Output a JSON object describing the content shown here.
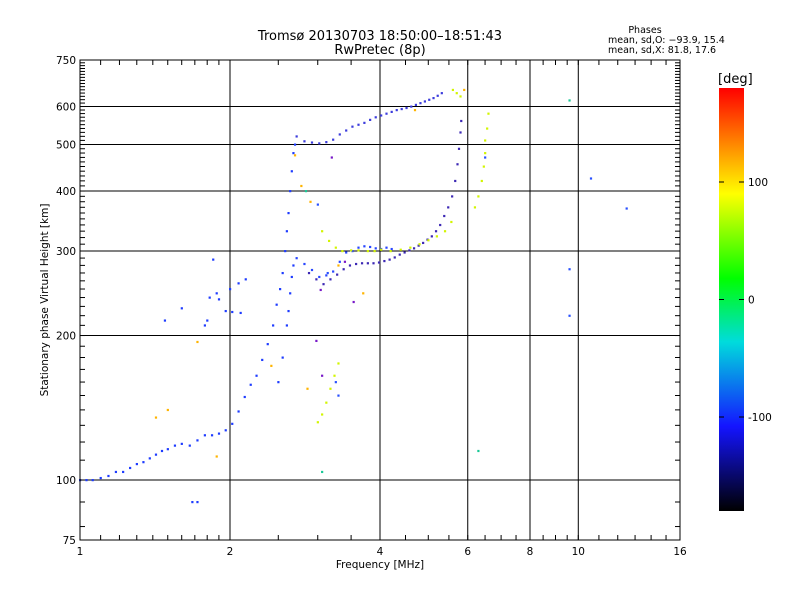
{
  "chart_data": {
    "type": "scatter",
    "title": "Tromsø 20130703 18:50:00–18:51:43",
    "subtitle": "RwPretec (8p)",
    "xlabel": "Frequency [MHz]",
    "ylabel": "Stationary phase Virtual Height [km]",
    "x_scale": "log",
    "y_scale": "log",
    "xlim": [
      1,
      16
    ],
    "ylim": [
      75,
      750
    ],
    "x_ticks": [
      1,
      2,
      4,
      6,
      8,
      10,
      16
    ],
    "x_tick_labels": [
      "1",
      "2",
      "4",
      "6",
      "8",
      "10",
      "16"
    ],
    "y_ticks": [
      75,
      100,
      200,
      300,
      400,
      500,
      600,
      750
    ],
    "y_tick_labels": [
      "75",
      "100",
      "200",
      "300",
      "400",
      "500",
      "600",
      "750"
    ],
    "grid": true,
    "stats": {
      "title": "Phases",
      "line1": "mean, sd,O: −93.9, 15.4",
      "line2": "mean, sd,X:  81.8, 17.6"
    },
    "colorbar": {
      "label": "[deg]",
      "range": [
        -180,
        180
      ],
      "ticks": [
        100,
        0,
        -100
      ],
      "tick_labels": [
        "100",
        "0",
        "-100"
      ],
      "colors": [
        "#ff0000",
        "#ffff00",
        "#00ff00",
        "#00ffff",
        "#0000ff",
        "#000000"
      ]
    },
    "series": [
      {
        "color": "#1e3cff",
        "points": [
          [
            1.0,
            100
          ],
          [
            1.03,
            100
          ],
          [
            1.06,
            100
          ],
          [
            1.1,
            101
          ],
          [
            1.14,
            102
          ],
          [
            1.18,
            104
          ],
          [
            1.22,
            104
          ],
          [
            1.26,
            106
          ],
          [
            1.3,
            108
          ],
          [
            1.34,
            109
          ],
          [
            1.38,
            111
          ],
          [
            1.42,
            113
          ],
          [
            1.46,
            115
          ],
          [
            1.5,
            116
          ],
          [
            1.55,
            118
          ],
          [
            1.6,
            119
          ],
          [
            1.66,
            118
          ],
          [
            1.72,
            121
          ],
          [
            1.78,
            124
          ],
          [
            1.84,
            124
          ],
          [
            1.9,
            125
          ],
          [
            1.96,
            127
          ],
          [
            2.02,
            131
          ],
          [
            2.08,
            139
          ],
          [
            2.14,
            149
          ],
          [
            2.2,
            158
          ],
          [
            2.26,
            165
          ],
          [
            2.32,
            178
          ],
          [
            2.38,
            192
          ],
          [
            2.44,
            210
          ],
          [
            2.48,
            232
          ],
          [
            2.52,
            250
          ],
          [
            2.55,
            270
          ],
          [
            2.58,
            300
          ],
          [
            2.6,
            330
          ],
          [
            2.62,
            360
          ],
          [
            2.64,
            400
          ],
          [
            2.66,
            440
          ],
          [
            2.68,
            480
          ],
          [
            2.7,
            500
          ],
          [
            2.6,
            210
          ],
          [
            2.62,
            225
          ],
          [
            2.64,
            245
          ],
          [
            2.66,
            265
          ],
          [
            2.68,
            280
          ],
          [
            2.55,
            180
          ],
          [
            2.5,
            160
          ],
          [
            1.8,
            215
          ],
          [
            1.78,
            210
          ],
          [
            1.82,
            240
          ],
          [
            1.88,
            245
          ],
          [
            1.9,
            238
          ],
          [
            1.96,
            225
          ],
          [
            2.02,
            224
          ],
          [
            2.1,
            223
          ],
          [
            2.0,
            250
          ],
          [
            2.08,
            257
          ],
          [
            2.15,
            262
          ],
          [
            1.85,
            288
          ],
          [
            1.6,
            228
          ],
          [
            1.48,
            215
          ],
          [
            1.68,
            90
          ],
          [
            1.72,
            90
          ]
        ]
      },
      {
        "color": "#3c3cdc",
        "points": [
          [
            2.72,
            520
          ],
          [
            2.82,
            508
          ],
          [
            2.92,
            505
          ],
          [
            3.02,
            503
          ],
          [
            3.12,
            506
          ],
          [
            3.22,
            512
          ],
          [
            3.32,
            525
          ],
          [
            3.42,
            535
          ],
          [
            3.52,
            545
          ],
          [
            3.62,
            550
          ],
          [
            3.72,
            555
          ],
          [
            3.82,
            563
          ],
          [
            3.92,
            570
          ],
          [
            4.02,
            575
          ],
          [
            4.12,
            580
          ],
          [
            4.22,
            585
          ],
          [
            4.32,
            590
          ],
          [
            4.42,
            593
          ],
          [
            4.52,
            596
          ],
          [
            4.62,
            600
          ],
          [
            4.72,
            605
          ],
          [
            4.82,
            610
          ],
          [
            4.92,
            615
          ],
          [
            5.02,
            620
          ],
          [
            5.12,
            625
          ],
          [
            5.22,
            632
          ],
          [
            5.32,
            640
          ]
        ]
      },
      {
        "color": "#3c28b4",
        "points": [
          [
            2.88,
            270
          ],
          [
            2.98,
            262
          ],
          [
            3.08,
            256
          ],
          [
            3.18,
            262
          ],
          [
            3.28,
            268
          ],
          [
            3.38,
            275
          ],
          [
            3.48,
            280
          ],
          [
            3.58,
            282
          ],
          [
            3.68,
            283
          ],
          [
            3.78,
            283
          ],
          [
            3.88,
            283
          ],
          [
            3.98,
            284
          ],
          [
            4.08,
            286
          ],
          [
            4.18,
            288
          ],
          [
            4.28,
            291
          ],
          [
            4.38,
            295
          ],
          [
            4.48,
            298
          ],
          [
            4.58,
            301
          ],
          [
            4.68,
            304
          ],
          [
            4.78,
            308
          ],
          [
            4.88,
            312
          ],
          [
            4.98,
            317
          ],
          [
            5.08,
            322
          ],
          [
            5.18,
            330
          ],
          [
            5.28,
            340
          ],
          [
            5.38,
            355
          ],
          [
            5.48,
            370
          ],
          [
            5.58,
            390
          ],
          [
            5.66,
            420
          ],
          [
            5.72,
            455
          ],
          [
            5.76,
            490
          ],
          [
            5.8,
            530
          ],
          [
            5.82,
            560
          ]
        ]
      },
      {
        "color": "#2846ff",
        "points": [
          [
            2.72,
            290
          ],
          [
            2.82,
            282
          ],
          [
            2.92,
            274
          ],
          [
            3.02,
            265
          ],
          [
            3.12,
            267
          ],
          [
            3.22,
            272
          ],
          [
            3.32,
            285
          ],
          [
            3.42,
            298
          ],
          [
            3.52,
            300
          ],
          [
            3.62,
            305
          ],
          [
            3.72,
            307
          ],
          [
            3.82,
            306
          ],
          [
            3.92,
            304
          ],
          [
            4.02,
            303
          ],
          [
            4.12,
            305
          ],
          [
            4.22,
            303
          ]
        ]
      },
      {
        "color": "#d2f500",
        "points": [
          [
            3.0,
            132
          ],
          [
            3.06,
            137
          ],
          [
            3.12,
            145
          ],
          [
            3.18,
            155
          ],
          [
            3.24,
            165
          ],
          [
            3.3,
            175
          ],
          [
            3.06,
            330
          ],
          [
            3.16,
            315
          ],
          [
            3.26,
            305
          ],
          [
            3.36,
            300
          ],
          [
            3.5,
            301
          ],
          [
            3.62,
            301
          ],
          [
            3.78,
            300
          ],
          [
            3.9,
            300
          ],
          [
            4.02,
            302
          ],
          [
            4.2,
            300
          ],
          [
            4.4,
            302
          ],
          [
            4.6,
            305
          ],
          [
            4.8,
            310
          ],
          [
            5.0,
            316
          ],
          [
            5.2,
            322
          ],
          [
            5.4,
            330
          ],
          [
            5.56,
            345
          ],
          [
            6.2,
            370
          ],
          [
            6.3,
            390
          ],
          [
            6.4,
            420
          ],
          [
            6.46,
            450
          ],
          [
            6.5,
            480
          ],
          [
            6.5,
            510
          ],
          [
            6.56,
            540
          ],
          [
            6.6,
            580
          ],
          [
            5.6,
            650
          ],
          [
            5.7,
            640
          ],
          [
            5.8,
            630
          ]
        ]
      },
      {
        "color": "#ffb400",
        "points": [
          [
            2.78,
            410
          ],
          [
            2.9,
            380
          ],
          [
            3.3,
            280
          ],
          [
            1.42,
            135
          ],
          [
            1.5,
            140
          ],
          [
            1.72,
            194
          ],
          [
            1.88,
            112
          ],
          [
            2.42,
            173
          ],
          [
            2.7,
            475
          ],
          [
            2.86,
            155
          ],
          [
            3.7,
            245
          ],
          [
            4.7,
            590
          ],
          [
            5.9,
            650
          ]
        ]
      },
      {
        "color": "#19c896",
        "points": [
          [
            6.3,
            115
          ],
          [
            9.6,
            618
          ],
          [
            2.84,
            400
          ],
          [
            3.06,
            104
          ]
        ]
      },
      {
        "color": "#2850ff",
        "points": [
          [
            12.5,
            368
          ],
          [
            10.6,
            425
          ],
          [
            9.6,
            275
          ],
          [
            9.6,
            220
          ],
          [
            6.5,
            470
          ],
          [
            3.3,
            150
          ],
          [
            3.26,
            160
          ],
          [
            3.0,
            375
          ],
          [
            3.14,
            270
          ]
        ]
      },
      {
        "color": "#7818c8",
        "points": [
          [
            3.2,
            470
          ],
          [
            3.04,
            249
          ],
          [
            3.54,
            235
          ],
          [
            3.4,
            285
          ],
          [
            2.98,
            195
          ],
          [
            3.06,
            165
          ]
        ]
      }
    ]
  }
}
